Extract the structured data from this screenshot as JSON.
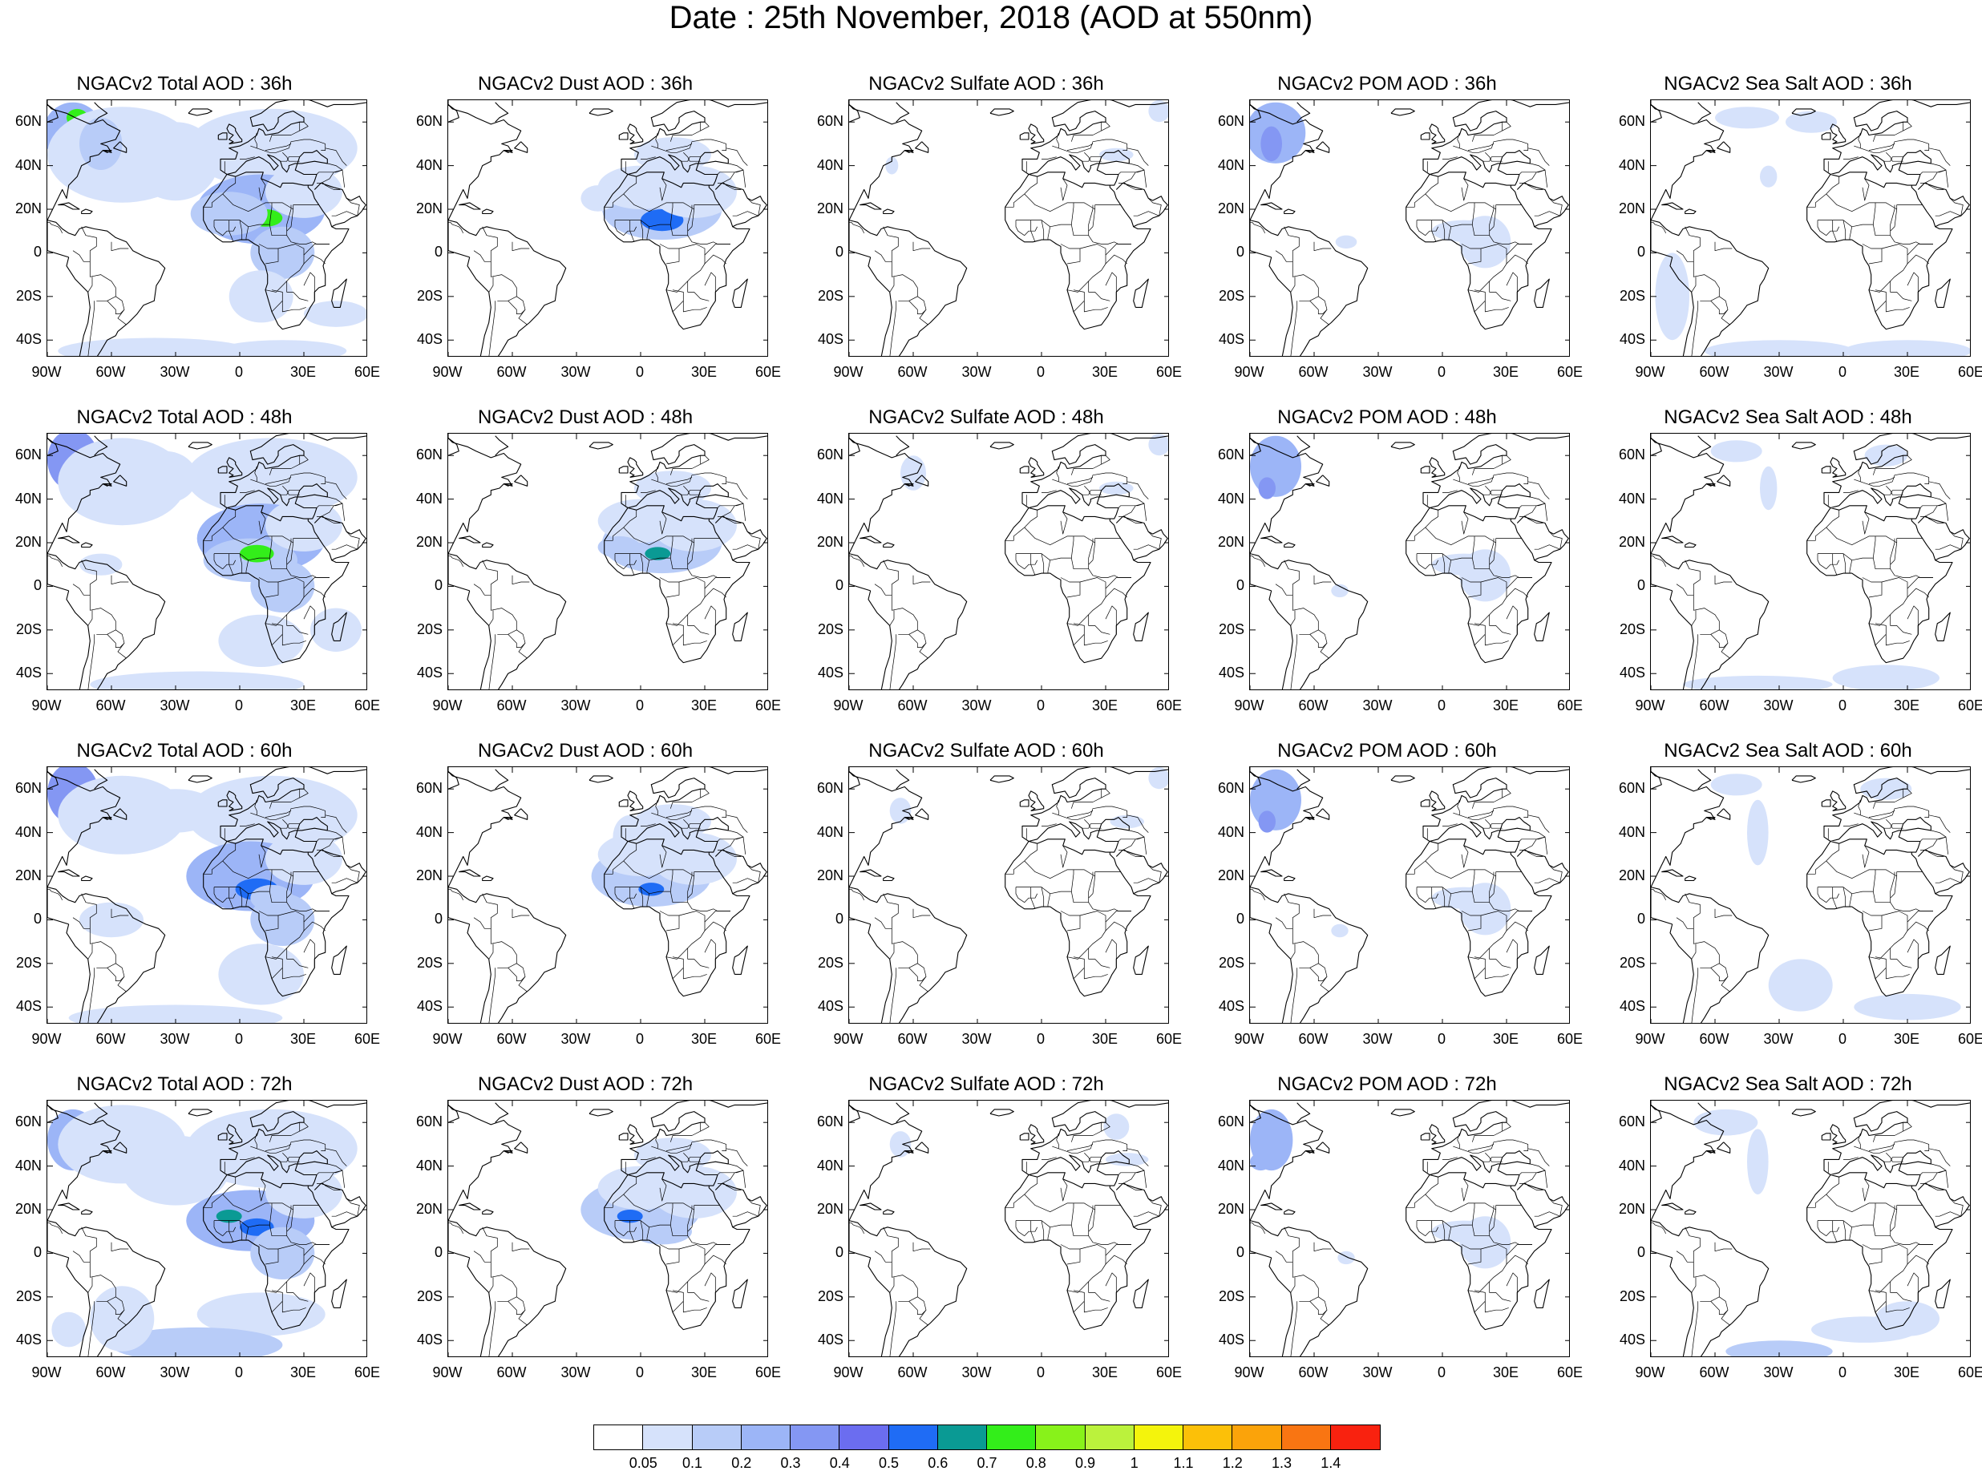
{
  "title": "Date : 25th November, 2018 (AOD at 550nm)",
  "axes": {
    "lat_labels": [
      "60N",
      "40N",
      "20N",
      "0",
      "20S",
      "40S"
    ],
    "lat_values": [
      60,
      40,
      20,
      0,
      -20,
      -40
    ],
    "lon_labels": [
      "90W",
      "60W",
      "30W",
      "0",
      "30E",
      "60E"
    ],
    "lon_values": [
      -90,
      -60,
      -30,
      0,
      30,
      60
    ],
    "lat_range": [
      -48,
      70
    ],
    "lon_range": [
      -90,
      60
    ]
  },
  "panels": [
    {
      "title": "NGACv2 Total AOD : 36h",
      "species": "total"
    },
    {
      "title": "NGACv2 Dust AOD : 36h",
      "species": "dust"
    },
    {
      "title": "NGACv2 Sulfate AOD : 36h",
      "species": "sulfate"
    },
    {
      "title": "NGACv2 POM AOD : 36h",
      "species": "pom"
    },
    {
      "title": "NGACv2 Sea Salt AOD : 36h",
      "species": "seasalt"
    },
    {
      "title": "NGACv2 Total AOD : 48h",
      "species": "total"
    },
    {
      "title": "NGACv2 Dust AOD : 48h",
      "species": "dust"
    },
    {
      "title": "NGACv2 Sulfate AOD : 48h",
      "species": "sulfate"
    },
    {
      "title": "NGACv2 POM AOD : 48h",
      "species": "pom"
    },
    {
      "title": "NGACv2 Sea Salt AOD : 48h",
      "species": "seasalt"
    },
    {
      "title": "NGACv2 Total AOD : 60h",
      "species": "total"
    },
    {
      "title": "NGACv2 Dust AOD : 60h",
      "species": "dust"
    },
    {
      "title": "NGACv2 Sulfate AOD : 60h",
      "species": "sulfate"
    },
    {
      "title": "NGACv2 POM AOD : 60h",
      "species": "pom"
    },
    {
      "title": "NGACv2 Sea Salt AOD : 60h",
      "species": "seasalt"
    },
    {
      "title": "NGACv2 Total AOD : 72h",
      "species": "total"
    },
    {
      "title": "NGACv2 Dust AOD : 72h",
      "species": "dust"
    },
    {
      "title": "NGACv2 Sulfate AOD : 72h",
      "species": "sulfate"
    },
    {
      "title": "NGACv2 POM AOD : 72h",
      "species": "pom"
    },
    {
      "title": "NGACv2 Sea Salt  AOD : 72h",
      "species": "seasalt"
    }
  ],
  "colorbar": {
    "labels": [
      "0.05",
      "0.1",
      "0.2",
      "0.3",
      "0.4",
      "0.5",
      "0.6",
      "0.7",
      "0.8",
      "0.9",
      "1",
      "1.1",
      "1.2",
      "1.3",
      "1.4"
    ],
    "colors": [
      "#ffffff",
      "#d6e2fb",
      "#b8ccf8",
      "#9cb5f7",
      "#8497f3",
      "#6b6df0",
      "#1f6cf5",
      "#0a9a94",
      "#33ee1a",
      "#88f21a",
      "#bbf23c",
      "#f4f40c",
      "#fcc008",
      "#fba30a",
      "#f97512",
      "#f9220f"
    ]
  }
}
